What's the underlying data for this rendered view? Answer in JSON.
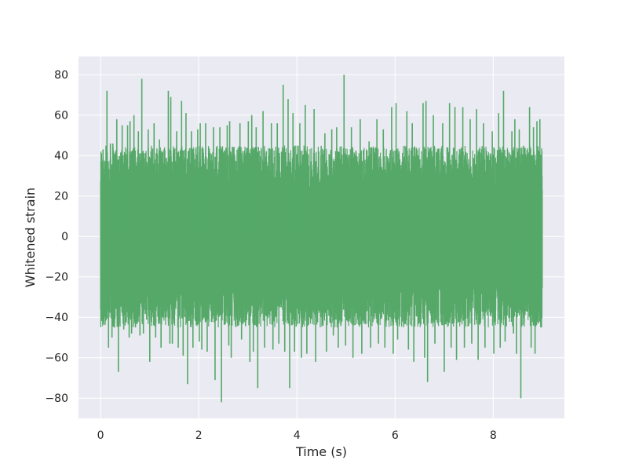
{
  "chart_data": {
    "type": "line",
    "title": "",
    "xlabel": "Time (s)",
    "ylabel": "Whitened strain",
    "xlim": [
      -0.45,
      9.45
    ],
    "ylim": [
      -90,
      89
    ],
    "xticks": [
      0,
      2,
      4,
      6,
      8
    ],
    "yticks": [
      -80,
      -60,
      -40,
      -20,
      0,
      20,
      40,
      60,
      80
    ],
    "xtick_labels": [
      "0",
      "2",
      "4",
      "6",
      "8"
    ],
    "ytick_labels": [
      "−80",
      "−60",
      "−40",
      "−20",
      "0",
      "20",
      "40",
      "60",
      "80"
    ],
    "grid": true,
    "background_color": "#eaeaf2",
    "grid_color": "#ffffff",
    "series": [
      {
        "name": "",
        "color": "#55a868",
        "sample_rate_hz": 4096,
        "duration_s": 9,
        "signal": "dense noise, typical range -45 to 45",
        "x": [
          0.03,
          0.05,
          0.13,
          0.2,
          0.25,
          0.33,
          0.44,
          0.55,
          0.6,
          0.68,
          0.77,
          0.84,
          0.97,
          1.09,
          1.2,
          1.38,
          1.43,
          1.55,
          1.65,
          1.74,
          1.85,
          1.98,
          2.03,
          2.14,
          2.3,
          2.43,
          2.58,
          2.63,
          2.84,
          3.01,
          3.08,
          3.17,
          3.31,
          3.48,
          3.6,
          3.72,
          3.82,
          3.92,
          4.06,
          4.17,
          4.35,
          4.57,
          4.71,
          4.81,
          4.96,
          5.11,
          5.29,
          5.47,
          5.63,
          5.76,
          5.93,
          6.02,
          6.24,
          6.35,
          6.57,
          6.63,
          6.78,
          6.97,
          7.11,
          7.22,
          7.38,
          7.53,
          7.66,
          7.8,
          7.98,
          8.11,
          8.21,
          8.38,
          8.44,
          8.53,
          8.74,
          8.82,
          8.89,
          8.95
        ],
        "peaks_high": [
          37,
          43,
          72,
          46,
          46,
          58,
          55,
          55,
          57,
          60,
          52,
          78,
          53,
          56,
          48,
          72,
          69,
          52,
          67,
          61,
          52,
          53,
          56,
          56,
          54,
          54,
          55,
          57,
          56,
          57,
          60,
          54,
          62,
          56,
          56,
          75,
          68,
          61,
          56,
          65,
          63,
          51,
          53,
          54,
          80,
          54,
          58,
          47,
          58,
          53,
          64,
          66,
          62,
          56,
          66,
          67,
          60,
          56,
          66,
          64,
          64,
          58,
          63,
          56,
          52,
          61,
          72,
          52,
          58,
          53,
          64,
          54,
          57,
          58
        ],
        "peaks_low": [
          -43,
          -40,
          -55,
          -50,
          -45,
          -67,
          -46,
          -50,
          -48,
          -45,
          -49,
          -48,
          -62,
          -50,
          -55,
          -53,
          -53,
          -55,
          -59,
          -73,
          -55,
          -52,
          -56,
          -57,
          -71,
          -82,
          -54,
          -60,
          -51,
          -62,
          -57,
          -75,
          -55,
          -56,
          -53,
          -57,
          -75,
          -57,
          -60,
          -58,
          -62,
          -57,
          -49,
          -55,
          -54,
          -60,
          -58,
          -55,
          -53,
          -55,
          -58,
          -51,
          -56,
          -62,
          -60,
          -72,
          -53,
          -67,
          -55,
          -61,
          -55,
          -53,
          -61,
          -55,
          -58,
          -55,
          -52,
          -48,
          -58,
          -80,
          -55,
          -58,
          -43,
          -45
        ]
      }
    ]
  }
}
